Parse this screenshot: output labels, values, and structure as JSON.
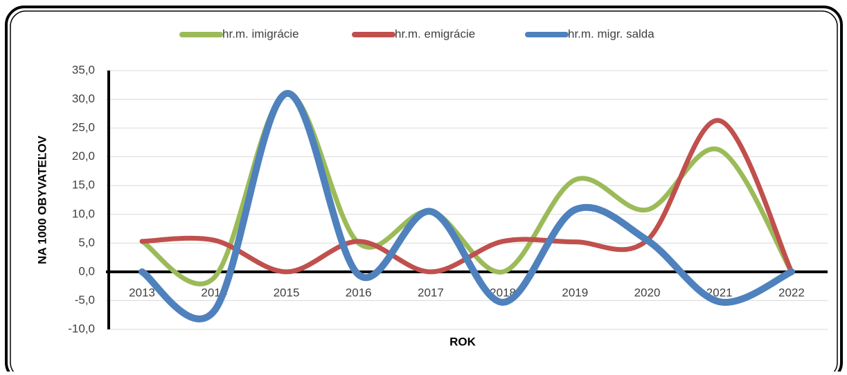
{
  "chart_data": {
    "type": "line",
    "x_label": "ROK",
    "y_label": "NA 1000 OBYVATEĽOV",
    "categories": [
      "2013",
      "2014",
      "2015",
      "2016",
      "2017",
      "2018",
      "2019",
      "2020",
      "2021",
      "2022"
    ],
    "series": [
      {
        "name": "hr.m. imigrácie",
        "color": "#9bbb59",
        "values": [
          5.3,
          -1.0,
          31.0,
          5.0,
          10.5,
          0.0,
          16.0,
          10.8,
          21.2,
          0.0
        ]
      },
      {
        "name": "hr.m. emigrácie",
        "color": "#c0504d",
        "values": [
          5.3,
          5.5,
          0.0,
          5.3,
          0.0,
          5.3,
          5.2,
          5.5,
          26.3,
          0.0
        ]
      },
      {
        "name": "hr.m. migr. salda",
        "color": "#4f81bd",
        "values": [
          0.0,
          -6.8,
          31.0,
          -0.5,
          10.5,
          -5.3,
          10.8,
          5.5,
          -5.2,
          0.0
        ]
      }
    ],
    "ylim": [
      -10,
      35
    ],
    "yticks": [
      {
        "value": -10,
        "label": "-10,0"
      },
      {
        "value": -5,
        "label": "-5,0"
      },
      {
        "value": 0,
        "label": "0,0"
      },
      {
        "value": 5,
        "label": "5,0"
      },
      {
        "value": 10,
        "label": "10,0"
      },
      {
        "value": 15,
        "label": "15,0"
      },
      {
        "value": 20,
        "label": "20,0"
      },
      {
        "value": 25,
        "label": "25,0"
      },
      {
        "value": 30,
        "label": "30,0"
      },
      {
        "value": 35,
        "label": "35,0"
      }
    ],
    "grid": true,
    "legend": "top"
  }
}
